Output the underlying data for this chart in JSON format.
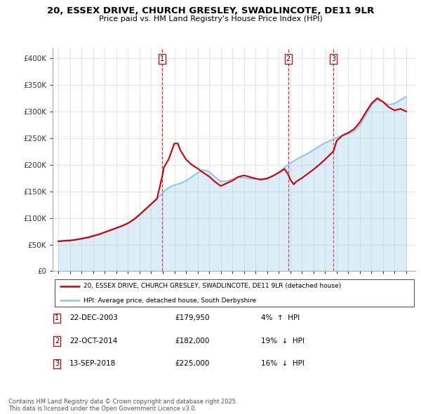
{
  "title": "20, ESSEX DRIVE, CHURCH GRESLEY, SWADLINCOTE, DE11 9LR",
  "subtitle": "Price paid vs. HM Land Registry's House Price Index (HPI)",
  "legend_line1": "20, ESSEX DRIVE, CHURCH GRESLEY, SWADLINCOTE, DE11 9LR (detached house)",
  "legend_line2": "HPI: Average price, detached house, South Derbyshire",
  "footer": "Contains HM Land Registry data © Crown copyright and database right 2025.\nThis data is licensed under the Open Government Licence v3.0.",
  "hpi_color": "#8cc4e8",
  "price_color": "#cc0000",
  "vline_color": "#cc0000",
  "transactions": [
    {
      "num": 1,
      "date": "22-DEC-2003",
      "price": 179950,
      "pct": "4%",
      "dir": "↑"
    },
    {
      "num": 2,
      "date": "22-OCT-2014",
      "price": 182000,
      "pct": "19%",
      "dir": "↓"
    },
    {
      "num": 3,
      "date": "13-SEP-2018",
      "price": 225000,
      "pct": "16%",
      "dir": "↓"
    }
  ],
  "vline_dates_decimal": [
    2003.97,
    2014.81,
    2018.71
  ],
  "ylim": [
    0,
    420000
  ],
  "yticks": [
    0,
    50000,
    100000,
    150000,
    200000,
    250000,
    300000,
    350000,
    400000
  ],
  "ytick_labels": [
    "£0",
    "£50K",
    "£100K",
    "£150K",
    "£200K",
    "£250K",
    "£300K",
    "£350K",
    "£400K"
  ],
  "xlim": [
    1994.5,
    2025.8
  ],
  "hpi_data": [
    [
      1995.0,
      57000
    ],
    [
      1995.5,
      58000
    ],
    [
      1996.0,
      58500
    ],
    [
      1996.5,
      60000
    ],
    [
      1997.0,
      62000
    ],
    [
      1997.5,
      64000
    ],
    [
      1998.0,
      67000
    ],
    [
      1998.5,
      70000
    ],
    [
      1999.0,
      74000
    ],
    [
      1999.5,
      78000
    ],
    [
      2000.0,
      82000
    ],
    [
      2000.5,
      86000
    ],
    [
      2001.0,
      91000
    ],
    [
      2001.5,
      98000
    ],
    [
      2002.0,
      107000
    ],
    [
      2002.5,
      117000
    ],
    [
      2003.0,
      127000
    ],
    [
      2003.5,
      137000
    ],
    [
      2004.0,
      148000
    ],
    [
      2004.5,
      157000
    ],
    [
      2005.0,
      162000
    ],
    [
      2005.5,
      165000
    ],
    [
      2006.0,
      170000
    ],
    [
      2006.5,
      177000
    ],
    [
      2007.0,
      185000
    ],
    [
      2007.5,
      190000
    ],
    [
      2008.0,
      187000
    ],
    [
      2008.5,
      177000
    ],
    [
      2009.0,
      169000
    ],
    [
      2009.5,
      169000
    ],
    [
      2010.0,
      173000
    ],
    [
      2010.5,
      176000
    ],
    [
      2011.0,
      176000
    ],
    [
      2011.5,
      174000
    ],
    [
      2012.0,
      173000
    ],
    [
      2012.5,
      173000
    ],
    [
      2013.0,
      175000
    ],
    [
      2013.5,
      179000
    ],
    [
      2014.0,
      186000
    ],
    [
      2014.5,
      195000
    ],
    [
      2015.0,
      203000
    ],
    [
      2015.5,
      210000
    ],
    [
      2016.0,
      216000
    ],
    [
      2016.5,
      221000
    ],
    [
      2017.0,
      228000
    ],
    [
      2017.5,
      235000
    ],
    [
      2018.0,
      241000
    ],
    [
      2018.5,
      246000
    ],
    [
      2019.0,
      251000
    ],
    [
      2019.5,
      255000
    ],
    [
      2020.0,
      258000
    ],
    [
      2020.5,
      263000
    ],
    [
      2021.0,
      275000
    ],
    [
      2021.5,
      293000
    ],
    [
      2022.0,
      312000
    ],
    [
      2022.5,
      322000
    ],
    [
      2023.0,
      318000
    ],
    [
      2023.5,
      313000
    ],
    [
      2024.0,
      315000
    ],
    [
      2024.5,
      322000
    ],
    [
      2025.0,
      328000
    ]
  ],
  "price_data": [
    [
      1995.0,
      56000
    ],
    [
      1995.5,
      57000
    ],
    [
      1996.0,
      57500
    ],
    [
      1996.5,
      59000
    ],
    [
      1997.0,
      61000
    ],
    [
      1997.5,
      63000
    ],
    [
      1998.0,
      66000
    ],
    [
      1998.5,
      69000
    ],
    [
      1999.0,
      73000
    ],
    [
      1999.5,
      77000
    ],
    [
      2000.0,
      81000
    ],
    [
      2000.5,
      85000
    ],
    [
      2001.0,
      90000
    ],
    [
      2001.5,
      97000
    ],
    [
      2002.0,
      106000
    ],
    [
      2002.5,
      116000
    ],
    [
      2003.0,
      126000
    ],
    [
      2003.5,
      136000
    ],
    [
      2003.97,
      179950
    ],
    [
      2004.1,
      195000
    ],
    [
      2004.5,
      210000
    ],
    [
      2005.0,
      240000
    ],
    [
      2005.3,
      240000
    ],
    [
      2005.5,
      228000
    ],
    [
      2006.0,
      210000
    ],
    [
      2006.5,
      200000
    ],
    [
      2007.0,
      193000
    ],
    [
      2007.5,
      185000
    ],
    [
      2008.0,
      178000
    ],
    [
      2008.5,
      168000
    ],
    [
      2009.0,
      160000
    ],
    [
      2009.5,
      165000
    ],
    [
      2010.0,
      170000
    ],
    [
      2010.5,
      177000
    ],
    [
      2011.0,
      180000
    ],
    [
      2011.5,
      177000
    ],
    [
      2012.0,
      174000
    ],
    [
      2012.5,
      172000
    ],
    [
      2013.0,
      174000
    ],
    [
      2013.5,
      179000
    ],
    [
      2014.0,
      185000
    ],
    [
      2014.5,
      192000
    ],
    [
      2014.81,
      182000
    ],
    [
      2015.0,
      172000
    ],
    [
      2015.3,
      163000
    ],
    [
      2015.5,
      168000
    ],
    [
      2016.0,
      175000
    ],
    [
      2016.5,
      183000
    ],
    [
      2017.0,
      191000
    ],
    [
      2017.5,
      200000
    ],
    [
      2018.0,
      210000
    ],
    [
      2018.71,
      225000
    ],
    [
      2019.0,
      245000
    ],
    [
      2019.5,
      255000
    ],
    [
      2020.0,
      260000
    ],
    [
      2020.5,
      267000
    ],
    [
      2021.0,
      280000
    ],
    [
      2021.5,
      298000
    ],
    [
      2022.0,
      315000
    ],
    [
      2022.5,
      325000
    ],
    [
      2023.0,
      318000
    ],
    [
      2023.5,
      308000
    ],
    [
      2024.0,
      302000
    ],
    [
      2024.5,
      305000
    ],
    [
      2025.0,
      300000
    ]
  ]
}
